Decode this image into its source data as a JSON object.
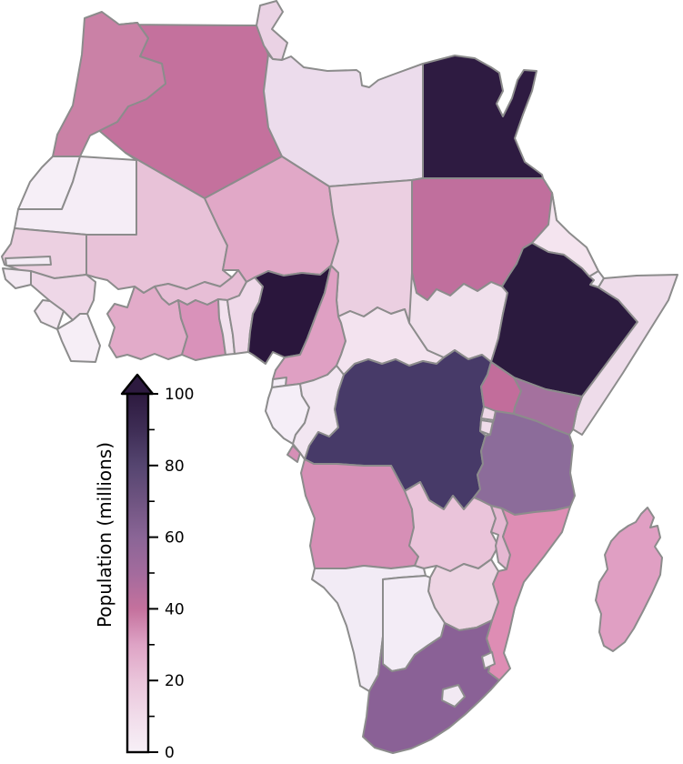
{
  "chart_data": {
    "type": "choropleth_map",
    "region": "Africa",
    "title": "Population (millions)",
    "background_color": "#ffffff",
    "border_color": "#8c8c8c",
    "colorbar": {
      "title": "Population (millions)",
      "orientation": "vertical",
      "min": 0,
      "max": 100,
      "ticks": [
        0,
        20,
        40,
        60,
        80,
        100
      ],
      "minor_ticks": [
        10,
        30,
        50,
        70,
        90
      ],
      "over_max_arrow": true,
      "gradient_stops": [
        {
          "value": 0,
          "color": "#f7f0f7"
        },
        {
          "value": 10,
          "color": "#f1dcea"
        },
        {
          "value": 20,
          "color": "#eac4da"
        },
        {
          "value": 30,
          "color": "#dea3c5"
        },
        {
          "value": 40,
          "color": "#c4719d"
        },
        {
          "value": 50,
          "color": "#a36b9d"
        },
        {
          "value": 60,
          "color": "#8a6596"
        },
        {
          "value": 70,
          "color": "#6f5481"
        },
        {
          "value": 80,
          "color": "#554570"
        },
        {
          "value": 90,
          "color": "#3e2d55"
        },
        {
          "value": 100,
          "color": "#2d1a3f"
        }
      ]
    },
    "countries": {
      "morocco": {
        "name": "Morocco",
        "population_millions": 34,
        "color": "#ca81a6"
      },
      "western_sahara": {
        "name": "Western Sahara",
        "population_millions": 0.5,
        "color": "#f6eff7"
      },
      "algeria": {
        "name": "Algeria",
        "population_millions": 40,
        "color": "#c4719d"
      },
      "tunisia": {
        "name": "Tunisia",
        "population_millions": 11,
        "color": "#ead2e4"
      },
      "libya": {
        "name": "Libya",
        "population_millions": 6,
        "color": "#ecdcec"
      },
      "egypt": {
        "name": "Egypt",
        "population_millions": 93,
        "color": "#2e1b41"
      },
      "mauritania": {
        "name": "Mauritania",
        "population_millions": 4,
        "color": "#f5edf6"
      },
      "senegal": {
        "name": "Senegal",
        "population_millions": 15,
        "color": "#ecd0e1"
      },
      "gambia": {
        "name": "Gambia",
        "population_millions": 2,
        "color": "#f3ebf4"
      },
      "guinea_bissau": {
        "name": "Guinea-Bissau",
        "population_millions": 1.8,
        "color": "#f3e9f2"
      },
      "guinea": {
        "name": "Guinea",
        "population_millions": 12,
        "color": "#eed7e7"
      },
      "sierra_leone": {
        "name": "Sierra Leone",
        "population_millions": 6.5,
        "color": "#f4e8f2"
      },
      "liberia": {
        "name": "Liberia",
        "population_millions": 4.5,
        "color": "#f6eef6"
      },
      "mali": {
        "name": "Mali",
        "population_millions": 17,
        "color": "#e8c2d8"
      },
      "burkina_faso": {
        "name": "Burkina Faso",
        "population_millions": 18,
        "color": "#e7bed6"
      },
      "cote_divoire": {
        "name": "Côte d'Ivoire",
        "population_millions": 23,
        "color": "#e2abc9"
      },
      "ghana": {
        "name": "Ghana",
        "population_millions": 27,
        "color": "#d992ba"
      },
      "togo": {
        "name": "Togo",
        "population_millions": 7,
        "color": "#f2e2ee"
      },
      "benin": {
        "name": "Benin",
        "population_millions": 11,
        "color": "#efd9e9"
      },
      "niger": {
        "name": "Niger",
        "population_millions": 20,
        "color": "#e1a8c7"
      },
      "nigeria": {
        "name": "Nigeria",
        "population_millions": 182,
        "color": "#2a163c"
      },
      "chad": {
        "name": "Chad",
        "population_millions": 14,
        "color": "#ebcfe1"
      },
      "sudan": {
        "name": "Sudan",
        "population_millions": 40,
        "color": "#c06f9d"
      },
      "eritrea": {
        "name": "Eritrea",
        "population_millions": 5,
        "color": "#f4e4ef"
      },
      "djibouti": {
        "name": "Djibouti",
        "population_millions": 0.9,
        "color": "#f5ecf5"
      },
      "ethiopia": {
        "name": "Ethiopia",
        "population_millions": 99,
        "color": "#2b1a3e"
      },
      "somalia": {
        "name": "Somalia",
        "population_millions": 11,
        "color": "#eedcea"
      },
      "south_sudan": {
        "name": "South Sudan",
        "population_millions": 12,
        "color": "#f0e0ec"
      },
      "car": {
        "name": "Central African Republic",
        "population_millions": 5,
        "color": "#f3e3ef"
      },
      "cameroon": {
        "name": "Cameroon",
        "population_millions": 23,
        "color": "#dfa0c3"
      },
      "eq_guinea": {
        "name": "Equatorial Guinea",
        "population_millions": 1.2,
        "color": "#f4ecf6"
      },
      "gabon": {
        "name": "Gabon",
        "population_millions": 1.9,
        "color": "#f5eef7"
      },
      "congo": {
        "name": "Republic of the Congo",
        "population_millions": 5,
        "color": "#f2e6f1"
      },
      "dr_congo": {
        "name": "DR Congo",
        "population_millions": 77,
        "color": "#473a68"
      },
      "uganda": {
        "name": "Uganda",
        "population_millions": 39,
        "color": "#c26d9b"
      },
      "kenya": {
        "name": "Kenya",
        "population_millions": 46,
        "color": "#a4719e"
      },
      "rwanda": {
        "name": "Rwanda",
        "population_millions": 11,
        "color": "#eed7e7"
      },
      "burundi": {
        "name": "Burundi",
        "population_millions": 10,
        "color": "#f0dcea"
      },
      "tanzania": {
        "name": "Tanzania",
        "population_millions": 53,
        "color": "#8c6c9a"
      },
      "angola": {
        "name": "Angola",
        "population_millions": 28,
        "color": "#d68fb6"
      },
      "zambia": {
        "name": "Zambia",
        "population_millions": 16,
        "color": "#eac4da"
      },
      "malawi": {
        "name": "Malawi",
        "population_millions": 17,
        "color": "#e5b8d2"
      },
      "mozambique": {
        "name": "Mozambique",
        "population_millions": 28,
        "color": "#de8db4"
      },
      "zimbabwe": {
        "name": "Zimbabwe",
        "population_millions": 15,
        "color": "#edd4e3"
      },
      "namibia": {
        "name": "Namibia",
        "population_millions": 2.4,
        "color": "#f2ebf5"
      },
      "botswana": {
        "name": "Botswana",
        "population_millions": 2.2,
        "color": "#f3ecf6"
      },
      "south_africa": {
        "name": "South Africa",
        "population_millions": 55,
        "color": "#8a6196"
      },
      "lesotho": {
        "name": "Lesotho",
        "population_millions": 2.1,
        "color": "#f2e9f3"
      },
      "eswatini": {
        "name": "Eswatini",
        "population_millions": 1.3,
        "color": "#f5ebf4"
      },
      "madagascar": {
        "name": "Madagascar",
        "population_millions": 24,
        "color": "#e09fc3"
      }
    }
  }
}
